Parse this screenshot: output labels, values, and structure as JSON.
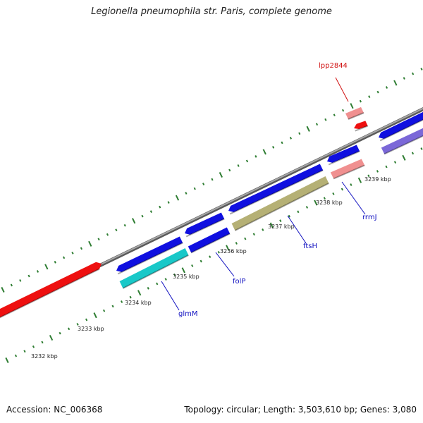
{
  "title": "Legionella pneumophila str. Paris, complete genome",
  "footer": {
    "accession": "Accession: NC_006368",
    "topology": "Topology: circular; Length: 3,503,610 bp; Genes: 3,080"
  },
  "colors": {
    "backbone": "#8c8c8c",
    "tick": "#2e7d32",
    "cds_forward": "#1010e0",
    "cds_reverse_cyan": "#19c8c8",
    "cds_khaki": "#b5b075",
    "cds_purple": "#7b68d8",
    "cds_red": "#ee1010",
    "rrna_pink": "#f09090",
    "label_blue": "#1010c0",
    "label_red": "#d01010"
  },
  "scale_labels": [
    "3232 kbp",
    "3233 kbp",
    "3234 kbp",
    "3235 kbp",
    "3236 kbp",
    "3237 kbp",
    "3238 kbp",
    "3239 kbp"
  ],
  "gene_labels": [
    {
      "name": "lpp2844",
      "color": "red"
    },
    {
      "name": "rrmJ",
      "color": "blue"
    },
    {
      "name": "ftsH",
      "color": "blue"
    },
    {
      "name": "folP",
      "color": "blue"
    },
    {
      "name": "glmM",
      "color": "blue"
    }
  ]
}
